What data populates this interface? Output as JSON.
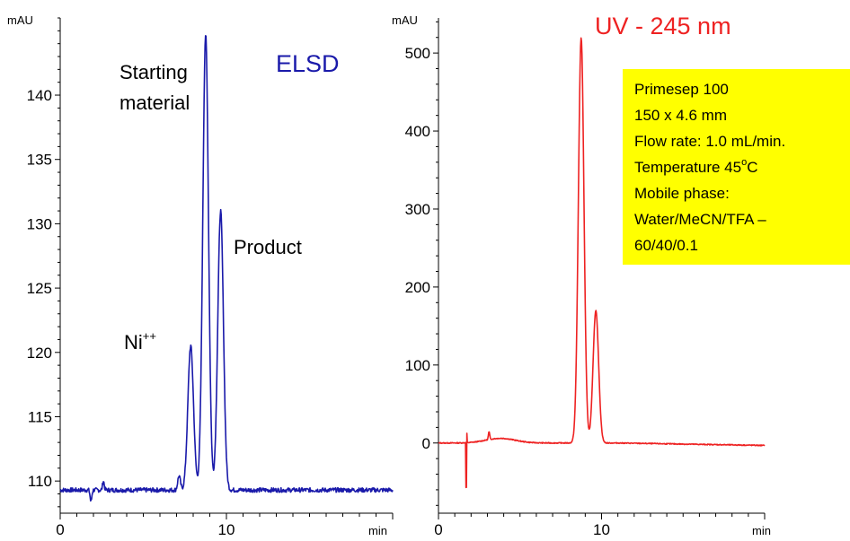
{
  "chart_data": [
    {
      "type": "line",
      "detector": "ELSD",
      "title": "ELSD",
      "color": "#1a1aaa",
      "y_unit": "mAU",
      "x_unit": "min",
      "xlim": [
        0,
        20
      ],
      "ylim": [
        107.5,
        146
      ],
      "x_ticks": [
        0,
        10
      ],
      "y_ticks": [
        110,
        115,
        120,
        125,
        130,
        135,
        140
      ],
      "baseline": 109.3,
      "peaks": [
        {
          "label": "Ni++",
          "time": 7.85,
          "height": 120.5
        },
        {
          "label": "Starting material",
          "time": 8.75,
          "height": 144.7
        },
        {
          "label": "Product",
          "time": 9.65,
          "height": 131.0
        }
      ],
      "annotations": [
        {
          "text": "Starting",
          "x": 4.9,
          "y": 141.2
        },
        {
          "text": "material",
          "x": 4.9,
          "y": 139.1
        },
        {
          "text": "Ni",
          "sup": "++",
          "x": 4.8,
          "y": 120.0
        },
        {
          "text": "Product",
          "x": 10.3,
          "y": 128.0
        }
      ]
    },
    {
      "type": "line",
      "detector": "UV - 245 nm",
      "title": "UV - 245 nm",
      "color": "#ee2222",
      "y_unit": "mAU",
      "x_unit": "min",
      "xlim": [
        0,
        20
      ],
      "ylim": [
        -90,
        545
      ],
      "x_ticks": [
        0,
        10
      ],
      "y_ticks": [
        0,
        100,
        200,
        300,
        400,
        500
      ],
      "baseline": 0,
      "peaks": [
        {
          "label": "Starting material",
          "time": 8.75,
          "height": 520
        },
        {
          "label": "Product",
          "time": 9.65,
          "height": 170
        }
      ],
      "artifacts": [
        {
          "time": 1.7,
          "min": -57,
          "max": 12
        },
        {
          "time": 3.1,
          "height": 10
        }
      ]
    }
  ],
  "conditions": {
    "background": "#ffff00",
    "lines": [
      "Primesep 100",
      "150 x 4.6 mm",
      "Flow rate: 1.0 mL/min.",
      "Temperature 45",
      "Mobile phase:",
      "Water/MeCN/TFA –",
      "60/40/0.1"
    ],
    "temperature_unit_sup": "o",
    "temperature_unit": "C"
  }
}
